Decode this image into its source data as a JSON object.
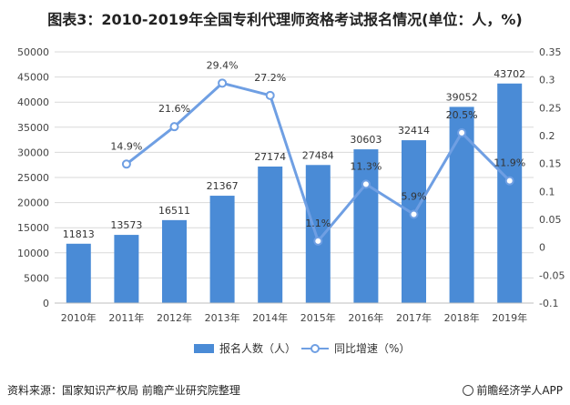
{
  "header": {
    "title": "图表3：2010-2019年全国专利代理师资格考试报名情况(单位：人，%)"
  },
  "footer": {
    "source": "资料来源：国家知识产权局 前瞻产业研究院整理",
    "brand": "前瞻经济学人APP"
  },
  "colors": {
    "bar": "#4a8bd6",
    "line": "#6f9fe3",
    "marker_fill": "#ffffff",
    "grid": "#d9d9d9"
  },
  "chart_data": {
    "type": "bar",
    "categories": [
      "2010年",
      "2011年",
      "2012年",
      "2013年",
      "2014年",
      "2015年",
      "2016年",
      "2017年",
      "2018年",
      "2019年"
    ],
    "series": [
      {
        "name": "报名人数（人）",
        "type": "bar",
        "axis": "left",
        "values": [
          11813,
          13573,
          16511,
          21367,
          27174,
          27484,
          30603,
          32414,
          39052,
          43702
        ],
        "labels": [
          "11813",
          "13573",
          "16511",
          "21367",
          "27174",
          "27484",
          "30603",
          "32414",
          "39052",
          "43702"
        ]
      },
      {
        "name": "同比增速（%）",
        "type": "line",
        "axis": "right",
        "values": [
          null,
          0.149,
          0.216,
          0.294,
          0.272,
          0.011,
          0.113,
          0.059,
          0.205,
          0.119
        ],
        "labels": [
          "",
          "14.9%",
          "21.6%",
          "29.4%",
          "27.2%",
          "1.1%",
          "11.3%",
          "5.9%",
          "20.5%",
          "11.9%"
        ]
      }
    ],
    "y_left": {
      "min": 0,
      "max": 50000,
      "ticks": [
        "0",
        "5000",
        "10000",
        "15000",
        "20000",
        "25000",
        "30000",
        "35000",
        "40000",
        "45000",
        "50000"
      ]
    },
    "y_right": {
      "min": -0.1,
      "max": 0.35,
      "ticks": [
        "-0.1",
        "-0.05",
        "0",
        "0.05",
        "0.1",
        "0.15",
        "0.2",
        "0.25",
        "0.3",
        "0.35"
      ]
    },
    "legend": {
      "position": "bottom"
    }
  }
}
